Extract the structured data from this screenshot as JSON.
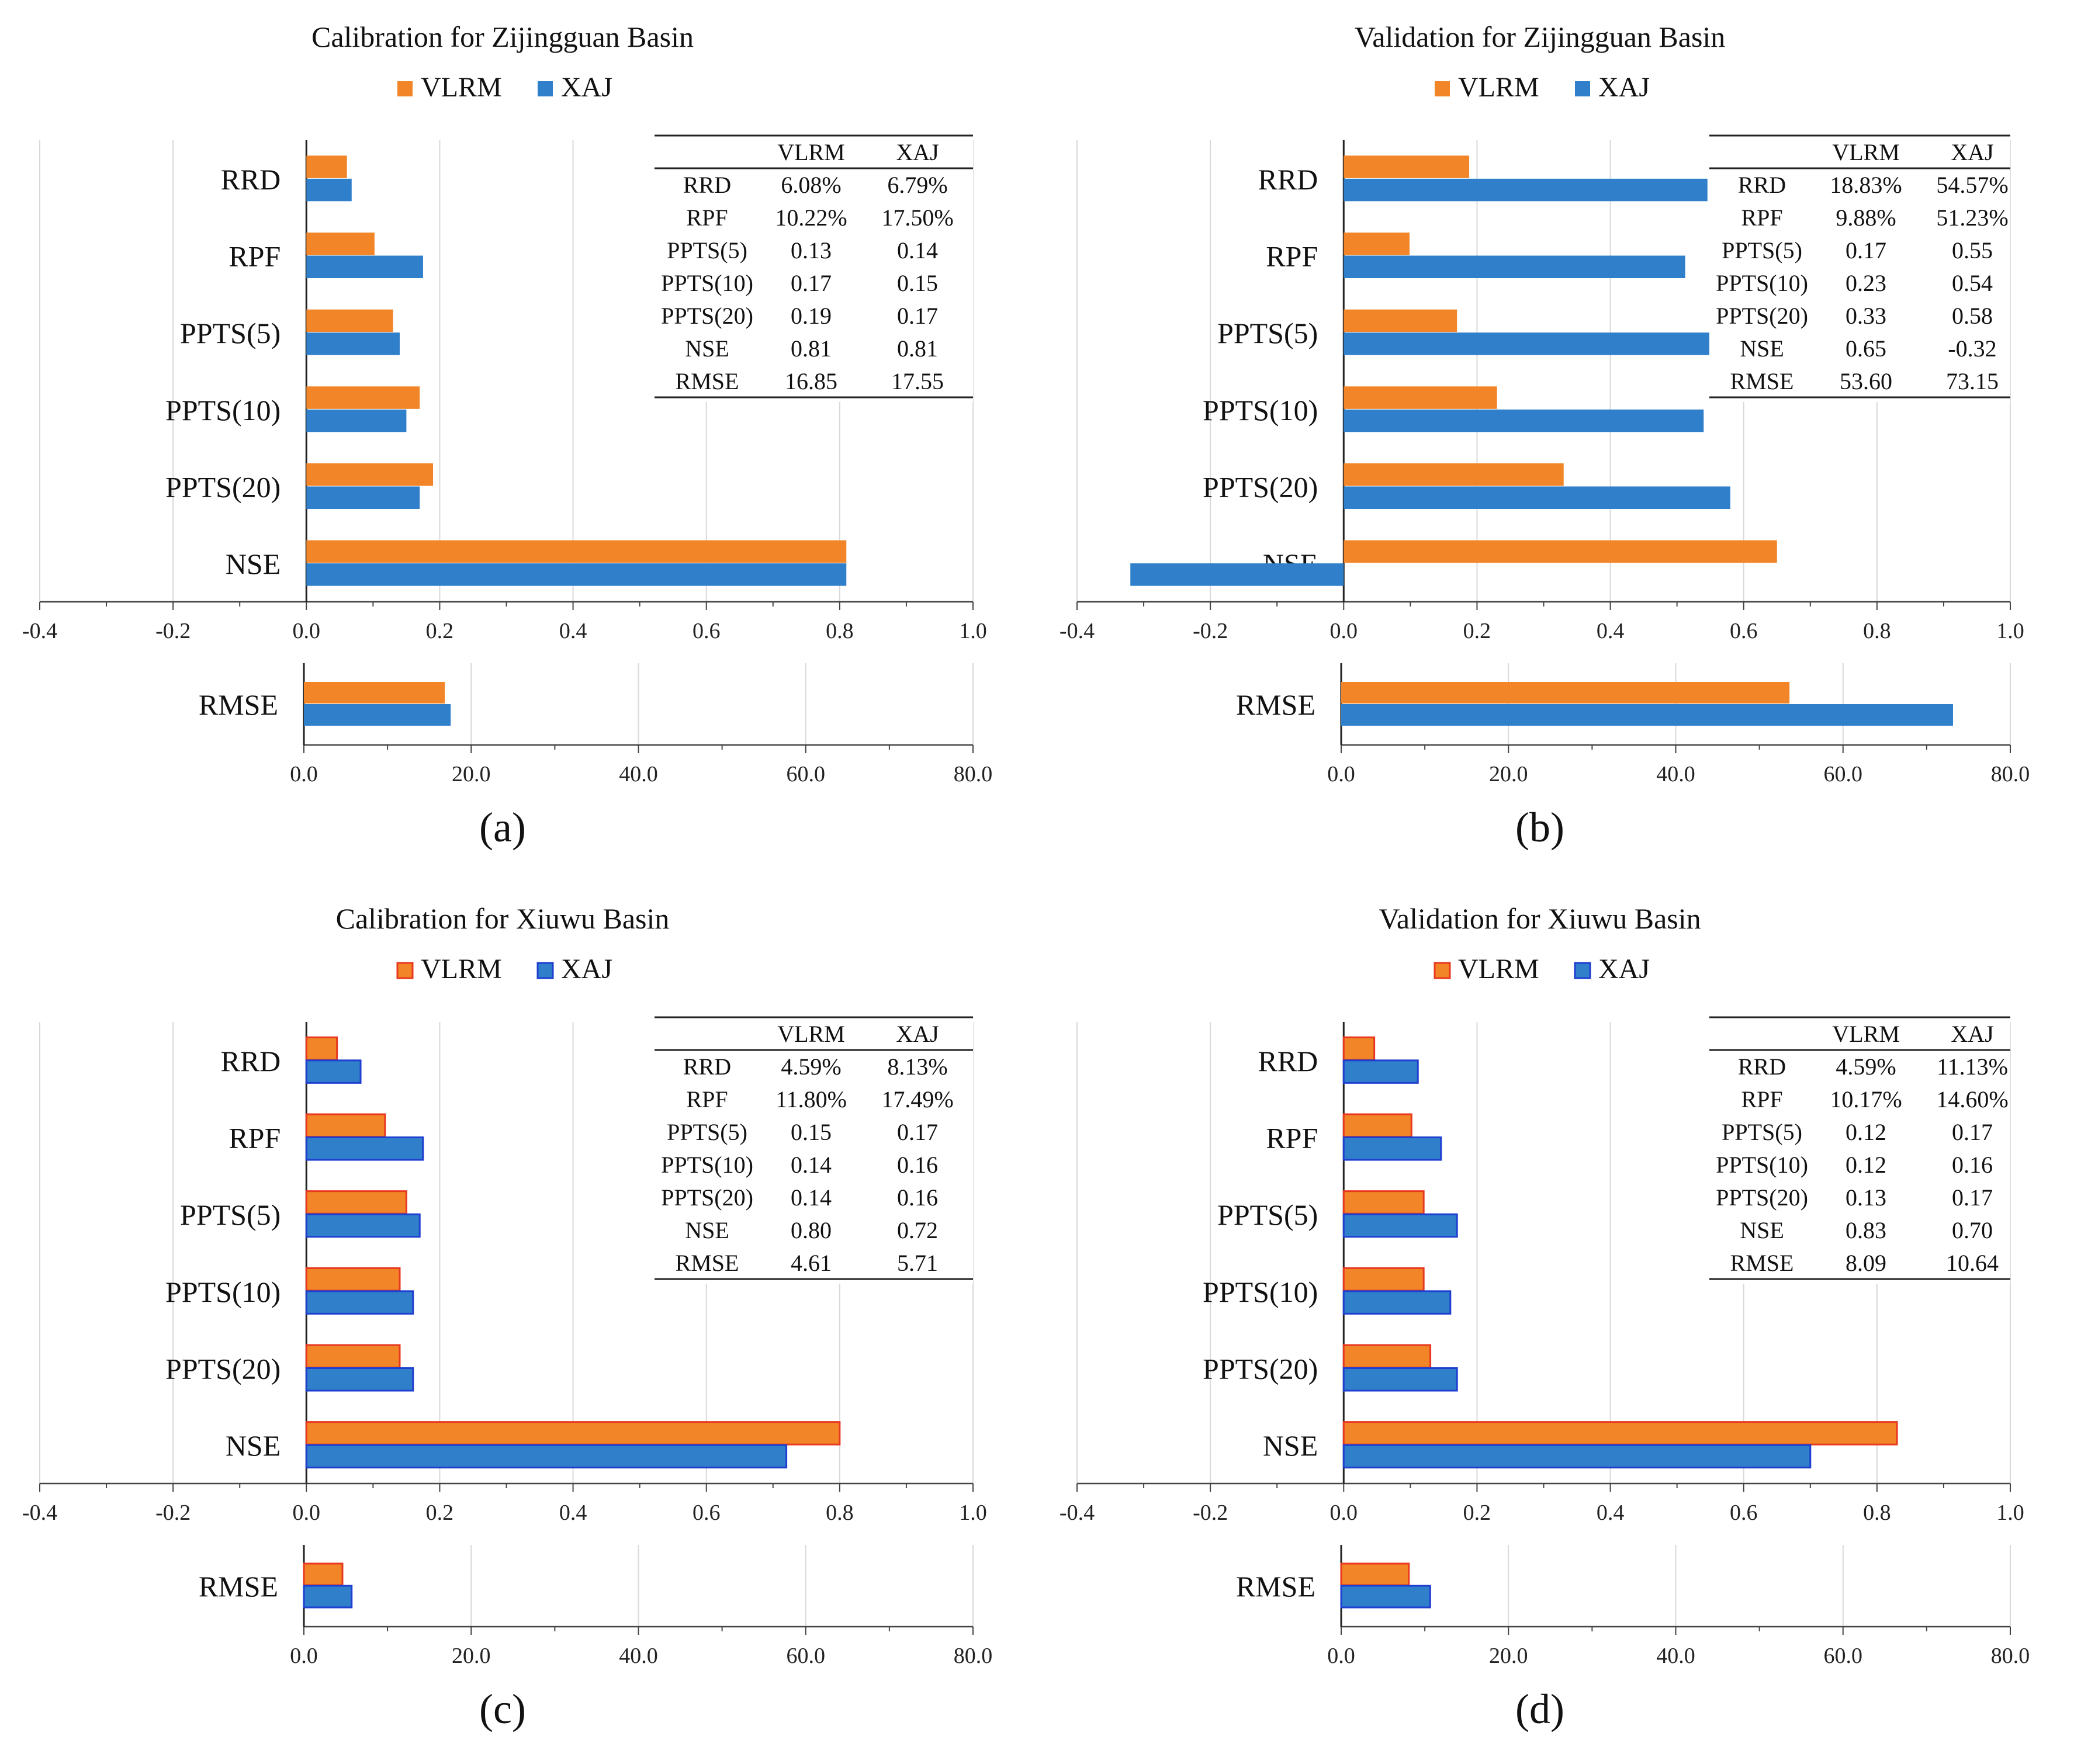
{
  "chart_data": [
    {
      "panel_label": "(a)",
      "type": "bar",
      "orientation": "horizontal",
      "title": "Calibration for Zijingguan Basin",
      "categories": [
        "RRD",
        "RPF",
        "PPTS(5)",
        "PPTS(10)",
        "PPTS(20)",
        "NSE"
      ],
      "series": [
        {
          "name": "VLRM",
          "values": [
            0.0608,
            0.1022,
            0.13,
            0.17,
            0.19,
            0.81
          ]
        },
        {
          "name": "XAJ",
          "values": [
            0.0679,
            0.175,
            0.14,
            0.15,
            0.17,
            0.81
          ]
        }
      ],
      "xlim": [
        -0.4,
        1.0
      ],
      "xticks": [
        "-0.4",
        "-0.2",
        "0.0",
        "0.2",
        "0.4",
        "0.6",
        "0.8",
        "1.0"
      ],
      "rmse": {
        "category": "RMSE",
        "values": [
          16.85,
          17.55
        ],
        "xlim": [
          0,
          80
        ],
        "xticks": [
          "0.0",
          "20.0",
          "40.0",
          "60.0",
          "80.0"
        ]
      },
      "table": {
        "headers": [
          "",
          "VLRM",
          "XAJ"
        ],
        "rows": [
          [
            "RRD",
            "6.08%",
            "6.79%"
          ],
          [
            "RPF",
            "10.22%",
            "17.50%"
          ],
          [
            "PPTS(5)",
            "0.13",
            "0.14"
          ],
          [
            "PPTS(10)",
            "0.17",
            "0.15"
          ],
          [
            "PPTS(20)",
            "0.19",
            "0.17"
          ],
          [
            "NSE",
            "0.81",
            "0.81"
          ],
          [
            "RMSE",
            "16.85",
            "17.55"
          ]
        ]
      }
    },
    {
      "panel_label": "(b)",
      "type": "bar",
      "orientation": "horizontal",
      "title": "Validation for Zijingguan Basin",
      "categories": [
        "RRD",
        "RPF",
        "PPTS(5)",
        "PPTS(10)",
        "PPTS(20)",
        "NSE"
      ],
      "series": [
        {
          "name": "VLRM",
          "values": [
            0.1883,
            0.0988,
            0.17,
            0.23,
            0.33,
            0.65
          ]
        },
        {
          "name": "XAJ",
          "values": [
            0.5457,
            0.5123,
            0.55,
            0.54,
            0.58,
            -0.32
          ]
        }
      ],
      "xlim": [
        -0.4,
        1.0
      ],
      "xticks": [
        "-0.4",
        "-0.2",
        "0.0",
        "0.2",
        "0.4",
        "0.6",
        "0.8",
        "1.0"
      ],
      "rmse": {
        "category": "RMSE",
        "values": [
          53.6,
          73.15
        ],
        "xlim": [
          0,
          80
        ],
        "xticks": [
          "0.0",
          "20.0",
          "40.0",
          "60.0",
          "80.0"
        ]
      },
      "table": {
        "headers": [
          "",
          "VLRM",
          "XAJ"
        ],
        "rows": [
          [
            "RRD",
            "18.83%",
            "54.57%"
          ],
          [
            "RPF",
            "9.88%",
            "51.23%"
          ],
          [
            "PPTS(5)",
            "0.17",
            "0.55"
          ],
          [
            "PPTS(10)",
            "0.23",
            "0.54"
          ],
          [
            "PPTS(20)",
            "0.33",
            "0.58"
          ],
          [
            "NSE",
            "0.65",
            "-0.32"
          ],
          [
            "RMSE",
            "53.60",
            "73.15"
          ]
        ]
      }
    },
    {
      "panel_label": "(c)",
      "type": "bar",
      "orientation": "horizontal",
      "title": "Calibration for Xiuwu Basin",
      "categories": [
        "RRD",
        "RPF",
        "PPTS(5)",
        "PPTS(10)",
        "PPTS(20)",
        "NSE"
      ],
      "series": [
        {
          "name": "VLRM",
          "values": [
            0.0459,
            0.118,
            0.15,
            0.14,
            0.14,
            0.8
          ]
        },
        {
          "name": "XAJ",
          "values": [
            0.0813,
            0.1749,
            0.17,
            0.16,
            0.16,
            0.72
          ]
        }
      ],
      "xlim": [
        -0.4,
        1.0
      ],
      "xticks": [
        "-0.4",
        "-0.2",
        "0.0",
        "0.2",
        "0.4",
        "0.6",
        "0.8",
        "1.0"
      ],
      "rmse": {
        "category": "RMSE",
        "values": [
          4.61,
          5.71
        ],
        "xlim": [
          0,
          80
        ],
        "xticks": [
          "0.0",
          "20.0",
          "40.0",
          "60.0",
          "80.0"
        ]
      },
      "table": {
        "headers": [
          "",
          "VLRM",
          "XAJ"
        ],
        "rows": [
          [
            "RRD",
            "4.59%",
            "8.13%"
          ],
          [
            "RPF",
            "11.80%",
            "17.49%"
          ],
          [
            "PPTS(5)",
            "0.15",
            "0.17"
          ],
          [
            "PPTS(10)",
            "0.14",
            "0.16"
          ],
          [
            "PPTS(20)",
            "0.14",
            "0.16"
          ],
          [
            "NSE",
            "0.80",
            "0.72"
          ],
          [
            "RMSE",
            "4.61",
            "5.71"
          ]
        ]
      }
    },
    {
      "panel_label": "(d)",
      "type": "bar",
      "orientation": "horizontal",
      "title": "Validation for Xiuwu Basin",
      "categories": [
        "RRD",
        "RPF",
        "PPTS(5)",
        "PPTS(10)",
        "PPTS(20)",
        "NSE"
      ],
      "series": [
        {
          "name": "VLRM",
          "values": [
            0.0459,
            0.1017,
            0.12,
            0.12,
            0.13,
            0.83
          ]
        },
        {
          "name": "XAJ",
          "values": [
            0.1113,
            0.146,
            0.17,
            0.16,
            0.17,
            0.7
          ]
        }
      ],
      "xlim": [
        -0.4,
        1.0
      ],
      "xticks": [
        "-0.4",
        "-0.2",
        "0.0",
        "0.2",
        "0.4",
        "0.6",
        "0.8",
        "1.0"
      ],
      "rmse": {
        "category": "RMSE",
        "values": [
          8.09,
          10.64
        ],
        "xlim": [
          0,
          80
        ],
        "xticks": [
          "0.0",
          "20.0",
          "40.0",
          "60.0",
          "80.0"
        ]
      },
      "table": {
        "headers": [
          "",
          "VLRM",
          "XAJ"
        ],
        "rows": [
          [
            "RRD",
            "4.59%",
            "11.13%"
          ],
          [
            "RPF",
            "10.17%",
            "14.60%"
          ],
          [
            "PPTS(5)",
            "0.12",
            "0.17"
          ],
          [
            "PPTS(10)",
            "0.12",
            "0.16"
          ],
          [
            "PPTS(20)",
            "0.13",
            "0.17"
          ],
          [
            "NSE",
            "0.83",
            "0.70"
          ],
          [
            "RMSE",
            "8.09",
            "10.64"
          ]
        ]
      }
    }
  ],
  "colors": {
    "vlrm": "#f28527",
    "xaj": "#2f7fca",
    "vlrm_border": "#e8381f",
    "xaj_border": "#1f3fd0"
  }
}
